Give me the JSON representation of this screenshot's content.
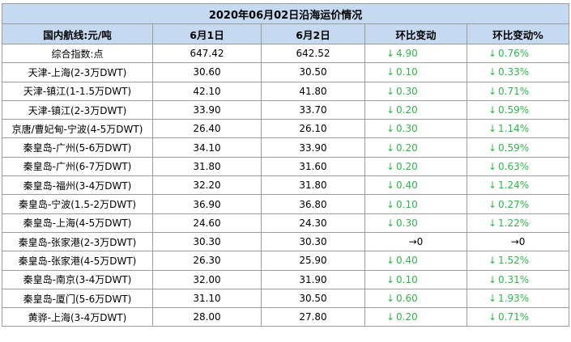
{
  "title": "2020年06月02日沿海运价情况",
  "headers": [
    "国内航线:元/吨",
    "6月1日",
    "6月2日",
    "环比变动",
    "环比变动%"
  ],
  "colors": {
    "header_bg": "#c5d9f1",
    "down": "#2db74a",
    "border": "#9c9c9c"
  },
  "icons": {
    "down": "↓",
    "flat": "→"
  },
  "rows": [
    {
      "route": "综合指数:点",
      "d1": "647.42",
      "d2": "642.52",
      "dir": "down",
      "chg": "4.90",
      "pct": "0.76%"
    },
    {
      "route": "天津-上海(2-3万DWT)",
      "d1": "30.60",
      "d2": "30.50",
      "dir": "down",
      "chg": "0.10",
      "pct": "0.33%"
    },
    {
      "route": "天津-镇江(1-1.5万DWT)",
      "d1": "42.10",
      "d2": "41.80",
      "dir": "down",
      "chg": "0.30",
      "pct": "0.71%"
    },
    {
      "route": "天津-镇江(2-3万DWT)",
      "d1": "33.90",
      "d2": "33.70",
      "dir": "down",
      "chg": "0.20",
      "pct": "0.59%"
    },
    {
      "route": "京唐/曹妃甸-宁波(4-5万DWT)",
      "d1": "26.40",
      "d2": "26.10",
      "dir": "down",
      "chg": "0.30",
      "pct": "1.14%"
    },
    {
      "route": "秦皇岛-广州(5-6万DWT)",
      "d1": "34.10",
      "d2": "33.90",
      "dir": "down",
      "chg": "0.20",
      "pct": "0.59%"
    },
    {
      "route": "秦皇岛-广州(6-7万DWT)",
      "d1": "31.80",
      "d2": "31.60",
      "dir": "down",
      "chg": "0.20",
      "pct": "0.63%"
    },
    {
      "route": "秦皇岛-福州(3-4万DWT)",
      "d1": "32.20",
      "d2": "31.80",
      "dir": "down",
      "chg": "0.40",
      "pct": "1.24%"
    },
    {
      "route": "秦皇岛-宁波(1.5-2万DWT)",
      "d1": "36.90",
      "d2": "36.80",
      "dir": "down",
      "chg": "0.10",
      "pct": "0.27%"
    },
    {
      "route": "秦皇岛-上海(4-5万DWT)",
      "d1": "24.60",
      "d2": "24.30",
      "dir": "down",
      "chg": "0.30",
      "pct": "1.22%"
    },
    {
      "route": "秦皇岛-张家港(2-3万DWT)",
      "d1": "30.30",
      "d2": "30.30",
      "dir": "flat",
      "chg": "0",
      "pct": "0"
    },
    {
      "route": "秦皇岛-张家港(4-5万DWT)",
      "d1": "26.30",
      "d2": "25.90",
      "dir": "down",
      "chg": "0.40",
      "pct": "1.52%"
    },
    {
      "route": "秦皇岛-南京(3-4万DWT)",
      "d1": "32.00",
      "d2": "31.90",
      "dir": "down",
      "chg": "0.10",
      "pct": "0.31%"
    },
    {
      "route": "秦皇岛-厦门(5-6万DWT)",
      "d1": "31.10",
      "d2": "30.50",
      "dir": "down",
      "chg": "0.60",
      "pct": "1.93%"
    },
    {
      "route": "黄骅-上海(3-4万DWT)",
      "d1": "28.00",
      "d2": "27.80",
      "dir": "down",
      "chg": "0.20",
      "pct": "0.71%"
    }
  ]
}
